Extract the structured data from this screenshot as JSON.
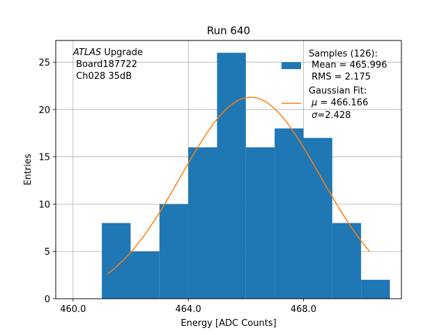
{
  "chart_data": {
    "type": "bar",
    "title": "Run 640",
    "xlabel": "Energy [ADC Counts]",
    "ylabel": "Entries",
    "xlim": [
      459.4,
      471.4
    ],
    "ylim": [
      0,
      27.3
    ],
    "xticks": [
      460.0,
      464.0,
      468.0
    ],
    "xtick_labels": [
      "460.0",
      "464.0",
      "468.0"
    ],
    "yticks": [
      0,
      5,
      10,
      15,
      20,
      25
    ],
    "ytick_labels": [
      "0",
      "5",
      "10",
      "15",
      "20",
      "25"
    ],
    "grid": true,
    "bar_color": "#1f77b4",
    "fit_color": "#ff7f0e",
    "histogram": {
      "bin_edges": [
        461,
        462,
        463,
        464,
        465,
        466,
        467,
        468,
        469,
        470,
        471
      ],
      "counts": [
        8,
        5,
        10,
        16,
        26,
        16,
        18,
        17,
        8,
        2
      ]
    },
    "gaussian_fit": {
      "amplitude": 21.3,
      "mu": 466.166,
      "sigma": 2.428,
      "x_range": [
        461.2,
        470.3
      ]
    },
    "annotation": {
      "atlas": "ATLAS",
      "upgrade": " Upgrade",
      "board": " Board187722",
      "channel": " Ch028 35dB"
    },
    "legend": {
      "placement": "top-right",
      "samples_line1": "Samples (126):",
      "samples_line2": " Mean = 465.996",
      "samples_line3": " RMS = 2.175",
      "fit_line1": "Gaussian Fit:",
      "fit_mu_symbol": "μ",
      "fit_mu_value": " = 466.166",
      "fit_sigma_symbol": "σ",
      "fit_sigma_value": "=2.428"
    }
  }
}
